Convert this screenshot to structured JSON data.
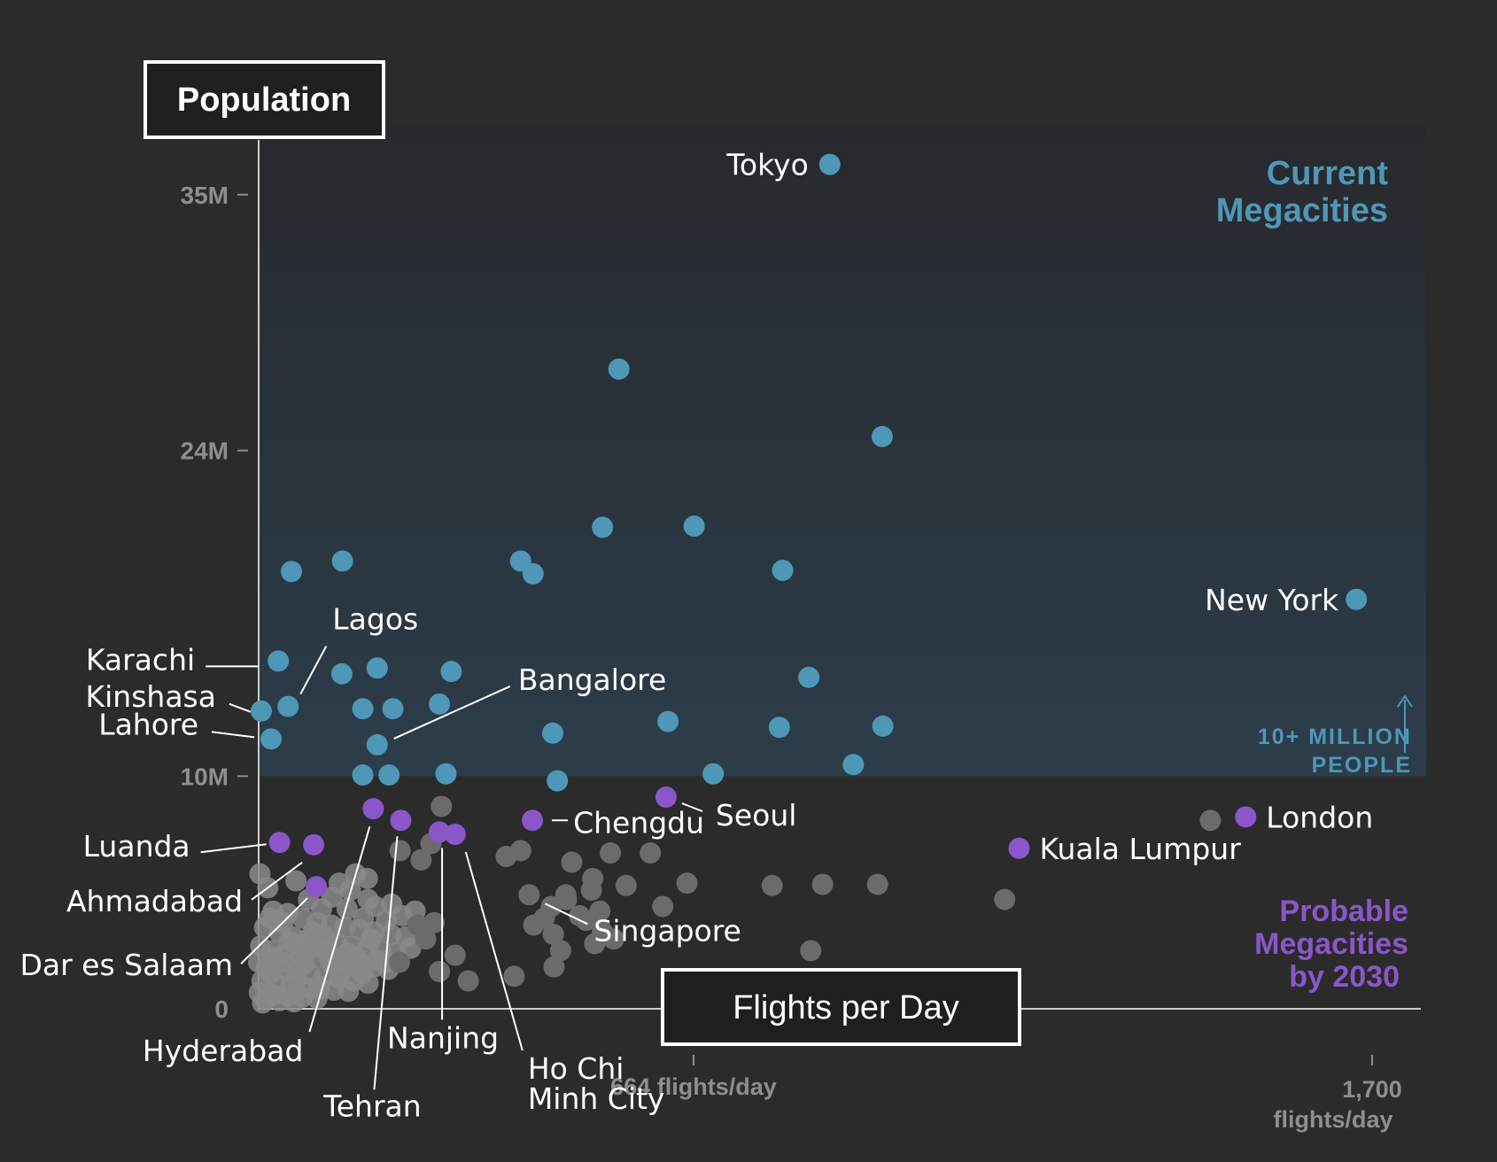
{
  "chart_data": {
    "type": "scatter",
    "xlabel": "Flights per Day",
    "ylabel": "Population",
    "xlim": [
      0,
      1700
    ],
    "ylim": [
      0,
      38000000
    ],
    "y_ticks": [
      {
        "value": 35000000,
        "label": "35M"
      },
      {
        "value": 24000000,
        "label": "24M"
      },
      {
        "value": 10000000,
        "label": "10M"
      },
      {
        "value": 0,
        "label": "0"
      }
    ],
    "x_ticks": [
      {
        "value": 664,
        "label": "664 flights/day"
      },
      {
        "value": 1700,
        "label": "1,700 flights/day"
      }
    ],
    "threshold": {
      "value": 10000000,
      "label_line1": "10+ MILLION",
      "label_line2": "PEOPLE"
    },
    "annotations": {
      "current_line1": "Current",
      "current_line2": "Megacities",
      "probable_line1": "Probable",
      "probable_line2": "Megacities",
      "probable_line3": "by 2030"
    },
    "colors": {
      "current": "#4e97b6",
      "probable": "#8a56c9",
      "other": "#6b6b6b",
      "other_dense": "#8a8a8a",
      "background": "#2b2b2b",
      "shade_top": "#27292d",
      "shade_bottom": "#2c3d4a",
      "axis": "#cccccc",
      "tick_text": "#8e8e8e"
    },
    "series": [
      {
        "key": "current",
        "points": [
          {
            "city": "Tokyo",
            "x": 872,
            "y": 36300000
          },
          {
            "x": 550,
            "y": 27500000
          },
          {
            "x": 952,
            "y": 24600000
          },
          {
            "x": 525,
            "y": 20700000
          },
          {
            "x": 665,
            "y": 20750000
          },
          {
            "x": 400,
            "y": 19250000
          },
          {
            "x": 419,
            "y": 18700000
          },
          {
            "x": 800,
            "y": 18850000
          },
          {
            "x": 128,
            "y": 19250000
          },
          {
            "x": 50,
            "y": 18800000
          },
          {
            "city": "New York",
            "x": 1676,
            "y": 17600000
          },
          {
            "city": "Karachi",
            "x": 30,
            "y": 14950000
          },
          {
            "x": 127,
            "y": 14400000
          },
          {
            "x": 181,
            "y": 14650000
          },
          {
            "x": 294,
            "y": 14500000
          },
          {
            "city": "Lagos",
            "x": 45,
            "y": 13000000
          },
          {
            "city": "Kinshasa",
            "x": 4,
            "y": 12800000
          },
          {
            "x": 159,
            "y": 12900000
          },
          {
            "x": 205,
            "y": 12900000
          },
          {
            "x": 276,
            "y": 13100000
          },
          {
            "x": 840,
            "y": 14250000
          },
          {
            "x": 625,
            "y": 12350000
          },
          {
            "city": "Lahore",
            "x": 19,
            "y": 11600000
          },
          {
            "city": "Bangalore",
            "x": 181,
            "y": 11350000
          },
          {
            "x": 449,
            "y": 11850000
          },
          {
            "x": 795,
            "y": 12100000
          },
          {
            "x": 953,
            "y": 12150000
          },
          {
            "x": 908,
            "y": 10500000
          },
          {
            "x": 199,
            "y": 10050000
          },
          {
            "x": 159,
            "y": 10050000
          },
          {
            "x": 286,
            "y": 10100000
          },
          {
            "x": 456,
            "y": 9800000
          },
          {
            "x": 694,
            "y": 10100000
          }
        ]
      },
      {
        "key": "probable",
        "points": [
          {
            "city": "Seoul",
            "x": 622,
            "y": 9100000
          },
          {
            "city": "Hyderabad",
            "x": 175,
            "y": 8600000
          },
          {
            "city": "Tehran",
            "x": 217,
            "y": 8100000
          },
          {
            "city": "Chengdu",
            "x": 418,
            "y": 8100000
          },
          {
            "city": "London",
            "x": 1507,
            "y": 8250000
          },
          {
            "city": "Nanjing",
            "x": 276,
            "y": 7600000
          },
          {
            "city": "Ho Chi Minh City",
            "x": 300,
            "y": 7500000
          },
          {
            "city": "Kuala Lumpur",
            "x": 1161,
            "y": 6900000
          },
          {
            "city": "Luanda",
            "x": 32,
            "y": 7150000
          },
          {
            "city": "Ahmadabad",
            "x": 84,
            "y": 7050000
          },
          {
            "city": "Dar es Salaam",
            "x": 88,
            "y": 5250000
          }
        ]
      },
      {
        "key": "other",
        "points": [
          {
            "x": 1453,
            "y": 8100000
          },
          {
            "x": 279,
            "y": 8700000
          },
          {
            "x": 378,
            "y": 6550000
          },
          {
            "x": 400,
            "y": 6800000
          },
          {
            "x": 478,
            "y": 6300000
          },
          {
            "x": 537,
            "y": 6700000
          },
          {
            "x": 598,
            "y": 6700000
          },
          {
            "x": 510,
            "y": 5600000
          },
          {
            "x": 508,
            "y": 5100000
          },
          {
            "x": 469,
            "y": 4900000
          },
          {
            "x": 413,
            "y": 4900000
          },
          {
            "x": 561,
            "y": 5300000
          },
          {
            "x": 654,
            "y": 5400000
          },
          {
            "x": 784,
            "y": 5300000
          },
          {
            "x": 861,
            "y": 5350000
          },
          {
            "x": 945,
            "y": 5350000
          },
          {
            "x": 1139,
            "y": 4700000
          },
          {
            "x": 617,
            "y": 4400000
          },
          {
            "x": 521,
            "y": 4200000
          },
          {
            "x": 447,
            "y": 4400000
          },
          {
            "x": 470,
            "y": 4700000
          },
          {
            "x": 500,
            "y": 3800000
          },
          {
            "x": 525,
            "y": 3300000
          },
          {
            "x": 513,
            "y": 2800000
          },
          {
            "x": 542,
            "y": 3000000
          },
          {
            "x": 451,
            "y": 1800000
          },
          {
            "x": 461,
            "y": 2500000
          },
          {
            "x": 843,
            "y": 2500000
          },
          {
            "x": 390,
            "y": 1400000
          },
          {
            "x": 436,
            "y": 3900000
          },
          {
            "x": 490,
            "y": 4000000
          },
          {
            "x": 450,
            "y": 3200000
          },
          {
            "x": 420,
            "y": 3600000
          },
          {
            "x": 243,
            "y": 3600000
          },
          {
            "x": 268,
            "y": 3700000
          },
          {
            "x": 255,
            "y": 3000000
          },
          {
            "x": 215,
            "y": 2000000
          },
          {
            "x": 276,
            "y": 1600000
          },
          {
            "x": 320,
            "y": 1200000
          },
          {
            "x": 300,
            "y": 2300000
          },
          {
            "x": 216,
            "y": 6800000
          },
          {
            "x": 248,
            "y": 6400000
          },
          {
            "x": 263,
            "y": 7100000
          }
        ]
      },
      {
        "key": "other_dense",
        "points": [
          {
            "x": 2,
            "y": 5800000
          },
          {
            "x": 14,
            "y": 5200000
          },
          {
            "x": 57,
            "y": 5500000
          },
          {
            "x": 76,
            "y": 4700000
          },
          {
            "x": 112,
            "y": 4800000
          },
          {
            "x": 123,
            "y": 5400000
          },
          {
            "x": 148,
            "y": 5800000
          },
          {
            "x": 166,
            "y": 5600000
          },
          {
            "x": 140,
            "y": 5100000
          },
          {
            "x": 167,
            "y": 4700000
          },
          {
            "x": 96,
            "y": 4300000
          },
          {
            "x": 135,
            "y": 4300000
          },
          {
            "x": 178,
            "y": 4400000
          },
          {
            "x": 160,
            "y": 3900000
          },
          {
            "x": 195,
            "y": 3800000
          },
          {
            "x": 219,
            "y": 4000000
          },
          {
            "x": 203,
            "y": 4500000
          },
          {
            "x": 239,
            "y": 4200000
          },
          {
            "x": 22,
            "y": 4200000
          },
          {
            "x": 44,
            "y": 4100000
          },
          {
            "x": 67,
            "y": 3900000
          },
          {
            "x": 89,
            "y": 3700000
          },
          {
            "x": 111,
            "y": 3600000
          },
          {
            "x": 132,
            "y": 3500000
          },
          {
            "x": 154,
            "y": 3400000
          },
          {
            "x": 176,
            "y": 3300000
          },
          {
            "x": 202,
            "y": 3200000
          },
          {
            "x": 225,
            "y": 3100000
          },
          {
            "x": 9,
            "y": 3500000
          },
          {
            "x": 31,
            "y": 3300000
          },
          {
            "x": 53,
            "y": 3100000
          },
          {
            "x": 76,
            "y": 3000000
          },
          {
            "x": 98,
            "y": 2900000
          },
          {
            "x": 120,
            "y": 2800000
          },
          {
            "x": 143,
            "y": 2700000
          },
          {
            "x": 165,
            "y": 2600000
          },
          {
            "x": 187,
            "y": 2500000
          },
          {
            "x": 210,
            "y": 2400000
          },
          {
            "x": 232,
            "y": 2600000
          },
          {
            "x": 3,
            "y": 2700000
          },
          {
            "x": 20,
            "y": 2500000
          },
          {
            "x": 42,
            "y": 2400000
          },
          {
            "x": 64,
            "y": 2300000
          },
          {
            "x": 86,
            "y": 2200000
          },
          {
            "x": 109,
            "y": 2100000
          },
          {
            "x": 131,
            "y": 2000000
          },
          {
            "x": 153,
            "y": 1900000
          },
          {
            "x": 176,
            "y": 1800000
          },
          {
            "x": 198,
            "y": 1700000
          },
          {
            "x": 0,
            "y": 2000000
          },
          {
            "x": 12,
            "y": 1800000
          },
          {
            "x": 34,
            "y": 1700000
          },
          {
            "x": 56,
            "y": 1600000
          },
          {
            "x": 78,
            "y": 1500000
          },
          {
            "x": 100,
            "y": 1400000
          },
          {
            "x": 123,
            "y": 1300000
          },
          {
            "x": 145,
            "y": 1200000
          },
          {
            "x": 167,
            "y": 1100000
          },
          {
            "x": 5,
            "y": 1200000
          },
          {
            "x": 27,
            "y": 1100000
          },
          {
            "x": 49,
            "y": 1000000
          },
          {
            "x": 71,
            "y": 900000
          },
          {
            "x": 93,
            "y": 850000
          },
          {
            "x": 115,
            "y": 800000
          },
          {
            "x": 137,
            "y": 750000
          },
          {
            "x": 1,
            "y": 700000
          },
          {
            "x": 23,
            "y": 600000
          },
          {
            "x": 45,
            "y": 550000
          },
          {
            "x": 67,
            "y": 500000
          },
          {
            "x": 89,
            "y": 450000
          },
          {
            "x": 10,
            "y": 400000
          },
          {
            "x": 32,
            "y": 350000
          },
          {
            "x": 54,
            "y": 300000
          },
          {
            "x": 6,
            "y": 250000
          },
          {
            "x": 18,
            "y": 1500000
          },
          {
            "x": 39,
            "y": 2000000
          },
          {
            "x": 61,
            "y": 2700000
          },
          {
            "x": 83,
            "y": 3300000
          },
          {
            "x": 105,
            "y": 2500000
          },
          {
            "x": 127,
            "y": 1600000
          },
          {
            "x": 150,
            "y": 2200000
          },
          {
            "x": 172,
            "y": 3000000
          },
          {
            "x": 194,
            "y": 2000000
          },
          {
            "x": 17,
            "y": 3900000
          },
          {
            "x": 37,
            "y": 3700000
          },
          {
            "x": 58,
            "y": 1300000
          },
          {
            "x": 80,
            "y": 2600000
          },
          {
            "x": 102,
            "y": 3100000
          },
          {
            "x": 24,
            "y": 2200000
          },
          {
            "x": 47,
            "y": 2900000
          },
          {
            "x": 69,
            "y": 1900000
          },
          {
            "x": 91,
            "y": 1000000
          },
          {
            "x": 113,
            "y": 1900000
          },
          {
            "x": 136,
            "y": 2400000
          },
          {
            "x": 158,
            "y": 1500000
          },
          {
            "x": 180,
            "y": 2100000
          }
        ]
      }
    ],
    "labels": [
      {
        "text": "Tokyo",
        "x": 872,
        "y": 36300000,
        "anchor": "end",
        "dx": -24,
        "dy": 12
      },
      {
        "text": "New York",
        "x": 1676,
        "y": 17600000,
        "anchor": "end",
        "dx": -20,
        "dy": 12
      },
      {
        "text": "Karachi",
        "x": 30,
        "y": 14950000,
        "anchor": "end",
        "dx": -94,
        "dy": 10,
        "line": [
          -82,
          6,
          -22,
          6
        ]
      },
      {
        "text": "Lagos",
        "x": 45,
        "y": 13000000,
        "anchor": "start",
        "dx": 50,
        "dy": -87,
        "line": [
          43,
          -68,
          14,
          -14
        ]
      },
      {
        "text": "Kinshasa",
        "x": 4,
        "y": 12800000,
        "anchor": "end",
        "dx": -51,
        "dy": -5,
        "line": [
          -36,
          -8,
          -12,
          1
        ]
      },
      {
        "text": "Lahore",
        "x": 19,
        "y": 11600000,
        "anchor": "end",
        "dx": -82,
        "dy": -5,
        "line": [
          -67,
          -8,
          -19,
          -2
        ]
      },
      {
        "text": "Bangalore",
        "x": 181,
        "y": 11350000,
        "anchor": "start",
        "dx": 159,
        "dy": -62,
        "line": [
          150,
          -66,
          19,
          -7
        ]
      },
      {
        "text": "Seoul",
        "x": 622,
        "y": 9100000,
        "anchor": "start",
        "dx": 56,
        "dy": 32,
        "line": [
          41,
          16,
          18,
          7
        ]
      },
      {
        "text": "Chengdu",
        "x": 418,
        "y": 8100000,
        "anchor": "start",
        "dx": 46,
        "dy": 14,
        "line": [
          22,
          0,
          40,
          0
        ]
      },
      {
        "text": "London",
        "x": 1507,
        "y": 8250000,
        "anchor": "start",
        "dx": 23,
        "dy": 12
      },
      {
        "text": "Kuala Lumpur",
        "x": 1161,
        "y": 6900000,
        "anchor": "start",
        "dx": 23,
        "dy": 12
      },
      {
        "text": "Singapore",
        "x": 413,
        "y": 4900000,
        "anchor": "start",
        "dx": 73,
        "dy": 52,
        "line": [
          66,
          33,
          18,
          10
        ]
      },
      {
        "text": "Luanda",
        "x": 32,
        "y": 7150000,
        "anchor": "end",
        "dx": -101,
        "dy": 16,
        "line": [
          -89,
          11,
          -15,
          2
        ]
      },
      {
        "text": "Ahmadabad",
        "x": 84,
        "y": 7050000,
        "anchor": "end",
        "dx": -80,
        "dy": 75,
        "line": [
          -70,
          62,
          -13,
          20
        ]
      },
      {
        "text": "Dar es Salaam",
        "x": 88,
        "y": 5250000,
        "anchor": "end",
        "dx": -94,
        "dy": 100,
        "line": [
          -85,
          87,
          -10,
          13
        ]
      },
      {
        "text": "Hyderabad",
        "x": 175,
        "y": 8600000,
        "anchor": "end",
        "dx": -79,
        "dy": 285,
        "line": [
          -72,
          252,
          -4,
          20
        ]
      },
      {
        "text": "Tehran",
        "x": 217,
        "y": 8100000,
        "anchor": "middle",
        "dx": -32,
        "dy": 334,
        "line": [
          -30,
          304,
          -4,
          18
        ]
      },
      {
        "text": "Nanjing",
        "x": 276,
        "y": 7600000,
        "anchor": "middle",
        "dx": 4,
        "dy": 244,
        "line": [
          3,
          212,
          3,
          18
        ]
      },
      {
        "text": "Ho Chi",
        "x": 300,
        "y": 7500000,
        "anchor": "start",
        "dx": 82,
        "dy": 276,
        "line": [
          76,
          244,
          12,
          20
        ]
      },
      {
        "text": "Minh City",
        "x": 300,
        "y": 7500000,
        "anchor": "start",
        "dx": 82,
        "dy": 310
      }
    ]
  }
}
